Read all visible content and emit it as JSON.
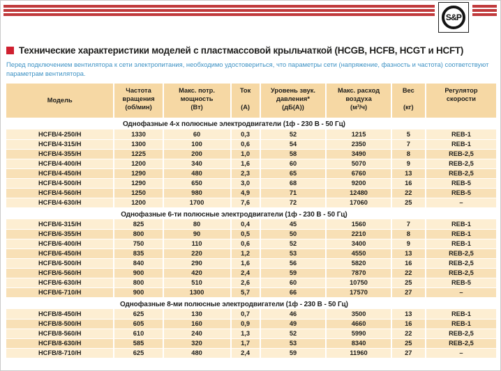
{
  "header": {
    "logo_text": "S&P",
    "title": "Технические характеристики моделей с пластмассовой крыльчаткой (HCGB, HCFB, HCGT и HCFT)",
    "note": "Перед подключением вентилятора к сети электропитания, необходимо удостовериться, что параметры сети (напряжение, фазность и частота) соответствуют параметрам вентилятора."
  },
  "colors": {
    "stripe_red": "#c0393b",
    "accent_red": "#cf2030",
    "note_blue": "#3e92c4",
    "header_bg": "#f6d8a4",
    "row_light": "#fdeed2",
    "row_dark": "#f8e0b6",
    "text": "#1d1d1b"
  },
  "table": {
    "columns": [
      {
        "id": "model",
        "lines": [
          "Модель"
        ]
      },
      {
        "id": "speed",
        "lines": [
          "Частота",
          "вращения",
          "(об/мин)"
        ]
      },
      {
        "id": "power",
        "lines": [
          "Макс. потр.",
          "мощность",
          "(Вт)"
        ]
      },
      {
        "id": "current",
        "lines": [
          "Ток",
          "",
          "(А)"
        ]
      },
      {
        "id": "noise",
        "lines": [
          "Уровень звук.",
          "давления*",
          "(дБ(А))"
        ]
      },
      {
        "id": "airflow",
        "lines": [
          "Макс. расход",
          "воздуха",
          "(м³/ч)"
        ]
      },
      {
        "id": "weight",
        "lines": [
          "Вес",
          "",
          "(кг)"
        ]
      },
      {
        "id": "regulator",
        "lines": [
          "Регулятор",
          "скорости"
        ]
      }
    ],
    "sections": [
      {
        "title": "Однофазные 4-х полюсные электродвигатели (1ф - 230 В - 50 Гц)",
        "rows": [
          [
            "HCFB/4-250/H",
            "1330",
            "60",
            "0,3",
            "52",
            "1215",
            "5",
            "REB-1"
          ],
          [
            "HCFB/4-315/H",
            "1300",
            "100",
            "0,6",
            "54",
            "2350",
            "7",
            "REB-1"
          ],
          [
            "HCFB/4-355/H",
            "1225",
            "200",
            "1,0",
            "58",
            "3490",
            "8",
            "REB-2,5"
          ],
          [
            "HCFB/4-400/H",
            "1200",
            "340",
            "1,6",
            "60",
            "5070",
            "9",
            "REB-2,5"
          ],
          [
            "HCFB/4-450/H",
            "1290",
            "480",
            "2,3",
            "65",
            "6760",
            "13",
            "REB-2,5"
          ],
          [
            "HCFB/4-500/H",
            "1290",
            "650",
            "3,0",
            "68",
            "9200",
            "16",
            "REB-5"
          ],
          [
            "HCFB/4-560/H",
            "1250",
            "980",
            "4,9",
            "71",
            "12480",
            "22",
            "REB-5"
          ],
          [
            "HCFB/4-630/H",
            "1200",
            "1700",
            "7,6",
            "72",
            "17060",
            "25",
            "–"
          ]
        ]
      },
      {
        "title": "Однофазные 6-ти полюсные электродвигатели (1ф - 230 В - 50 Гц)",
        "rows": [
          [
            "HCFB/6-315/H",
            "825",
            "80",
            "0,4",
            "45",
            "1560",
            "7",
            "REB-1"
          ],
          [
            "HCFB/6-355/H",
            "800",
            "90",
            "0,5",
            "50",
            "2210",
            "8",
            "REB-1"
          ],
          [
            "HCFB/6-400/H",
            "750",
            "110",
            "0,6",
            "52",
            "3400",
            "9",
            "REB-1"
          ],
          [
            "HCFB/6-450/H",
            "835",
            "220",
            "1,2",
            "53",
            "4550",
            "13",
            "REB-2,5"
          ],
          [
            "HCFB/6-500/H",
            "840",
            "290",
            "1,6",
            "56",
            "5820",
            "16",
            "REB-2,5"
          ],
          [
            "HCFB/6-560/H",
            "900",
            "420",
            "2,4",
            "59",
            "7870",
            "22",
            "REB-2,5"
          ],
          [
            "HCFB/6-630/H",
            "800",
            "510",
            "2,6",
            "60",
            "10750",
            "25",
            "REB-5"
          ],
          [
            "HCFB/6-710/H",
            "900",
            "1300",
            "5,7",
            "66",
            "17570",
            "27",
            "–"
          ]
        ]
      },
      {
        "title": "Однофазные 8-ми полюсные электродвигатели (1ф - 230 В - 50 Гц)",
        "rows": [
          [
            "HCFB/8-450/H",
            "625",
            "130",
            "0,7",
            "46",
            "3500",
            "13",
            "REB-1"
          ],
          [
            "HCFB/8-500/H",
            "605",
            "160",
            "0,9",
            "49",
            "4660",
            "16",
            "REB-1"
          ],
          [
            "HCFB/8-560/H",
            "610",
            "240",
            "1,3",
            "52",
            "5990",
            "22",
            "REB-2,5"
          ],
          [
            "HCFB/8-630/H",
            "585",
            "320",
            "1,7",
            "53",
            "8340",
            "25",
            "REB-2,5"
          ],
          [
            "HCFB/8-710/H",
            "625",
            "480",
            "2,4",
            "59",
            "11960",
            "27",
            "–"
          ]
        ]
      }
    ]
  }
}
